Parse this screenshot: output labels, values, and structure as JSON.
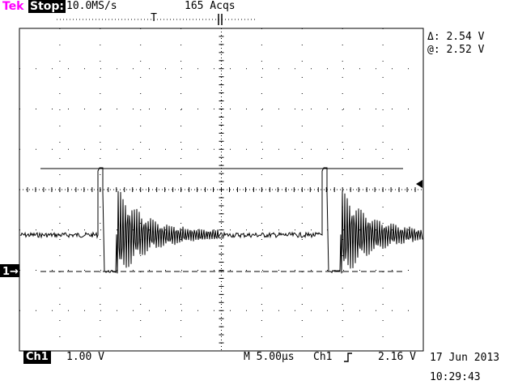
{
  "header": {
    "brand": "Tek",
    "run_state": "Stop:",
    "sample_rate": "10.0MS/s",
    "acquisitions": "165 Acqs",
    "trigger_marker": "T"
  },
  "cursors": {
    "delta": "Δ: 2.54 V",
    "at": "@: 2.52 V"
  },
  "footer": {
    "channel": "Ch1",
    "volts_per_div": "1.00 V",
    "timebase": "M 5.00µs",
    "trigger_source": "Ch1",
    "trigger_slope_icon": "rising-edge-icon",
    "trigger_level": "2.16 V",
    "date": "17 Jun 2013",
    "time": "10:29:43"
  },
  "markers": {
    "channel1_ground": "1→"
  }
}
